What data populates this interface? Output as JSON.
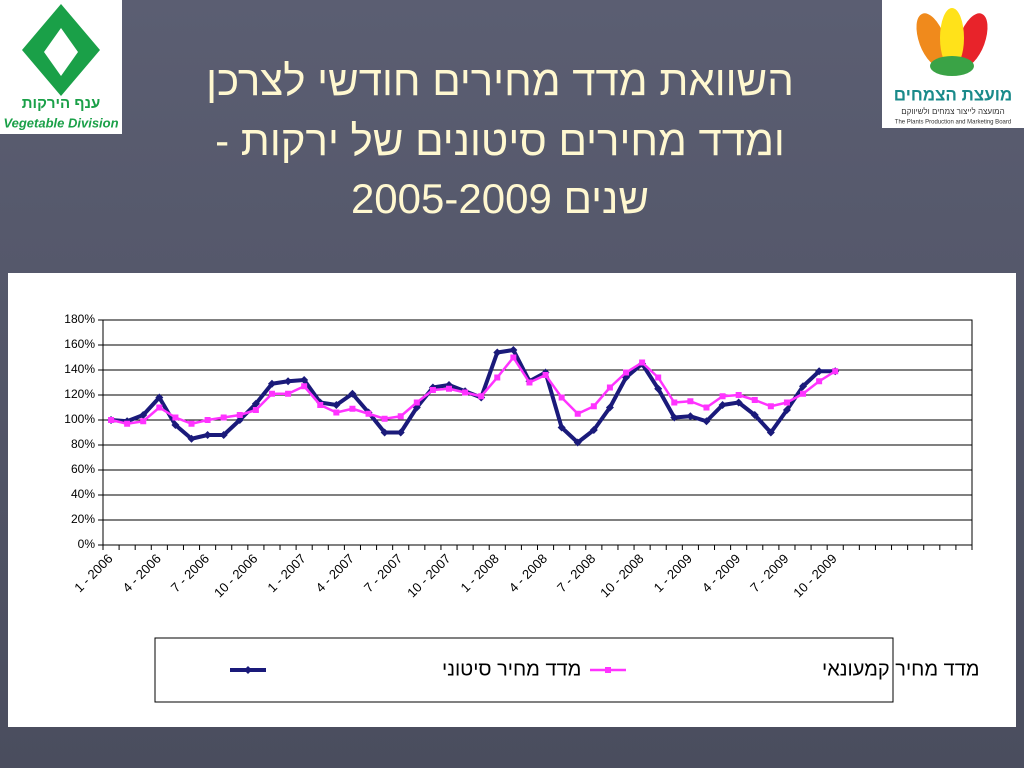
{
  "slide": {
    "title_lines": [
      "השוואת מדד מחירים חודשי לצרכן",
      "ומדד מחירים סיטונים של ירקות  -",
      "שנים 2005-2009"
    ],
    "left_logo": {
      "hebrew": "ענף הירקות",
      "english": "Vegetable Division"
    },
    "right_logo": {
      "hebrew": "מועצת הצמחים",
      "subtitle": "המועצה לייצור צמחים ולשיווקם",
      "english": "The Plants Production and Marketing Board"
    }
  },
  "chart_data": {
    "type": "line",
    "categories": [
      "1 - 2006",
      null,
      null,
      "4 - 2006",
      null,
      null,
      "7 - 2006",
      null,
      null,
      "10 - 2006",
      null,
      null,
      "1 - 2007",
      null,
      null,
      "4 - 2007",
      null,
      null,
      "7 - 2007",
      null,
      null,
      "10 - 2007",
      null,
      null,
      "1 - 2008",
      null,
      null,
      "4 - 2008",
      null,
      null,
      "7 - 2008",
      null,
      null,
      "10 - 2008",
      null,
      null,
      "1 - 2009",
      null,
      null,
      "4 - 2009",
      null,
      null,
      "7 - 2009",
      null,
      null,
      "10 - 2009",
      null,
      null,
      null,
      null,
      null,
      null,
      null,
      null
    ],
    "series": [
      {
        "name": "מדד מחיר סיטוני",
        "color": "#1a1a7a",
        "marker": "diamond",
        "values": [
          100,
          99,
          104,
          118,
          96,
          85,
          88,
          88,
          100,
          113,
          129,
          131,
          132,
          114,
          112,
          121,
          106,
          90,
          90,
          110,
          126,
          128,
          123,
          118,
          154,
          156,
          131,
          138,
          94,
          82,
          92,
          110,
          134,
          145,
          125,
          102,
          103,
          99,
          112,
          114,
          104,
          90,
          108,
          127,
          139,
          139,
          null,
          null,
          null,
          null,
          null,
          null,
          null,
          null
        ]
      },
      {
        "name": "מדד מחיר קמעונאי",
        "color": "#ff33ff",
        "marker": "square",
        "values": [
          100,
          97,
          99,
          110,
          102,
          97,
          100,
          102,
          104,
          108,
          121,
          121,
          127,
          112,
          106,
          109,
          105,
          101,
          103,
          114,
          124,
          125,
          122,
          119,
          134,
          150,
          130,
          136,
          118,
          105,
          111,
          126,
          138,
          146,
          134,
          114,
          115,
          110,
          119,
          120,
          116,
          111,
          114,
          121,
          131,
          139,
          null,
          null,
          null,
          null,
          null,
          null,
          null,
          null
        ]
      }
    ],
    "ylim": [
      0,
      180
    ],
    "yticks": [
      {
        "value": 0,
        "label": "0%"
      },
      {
        "value": 20,
        "label": "20%"
      },
      {
        "value": 40,
        "label": "40%"
      },
      {
        "value": 60,
        "label": "60%"
      },
      {
        "value": 80,
        "label": "80%"
      },
      {
        "value": 100,
        "label": "100%"
      },
      {
        "value": 120,
        "label": "120%"
      },
      {
        "value": 140,
        "label": "140%"
      },
      {
        "value": 160,
        "label": "160%"
      },
      {
        "value": 180,
        "label": "180%"
      }
    ],
    "grid": true,
    "legend": "bottom"
  }
}
